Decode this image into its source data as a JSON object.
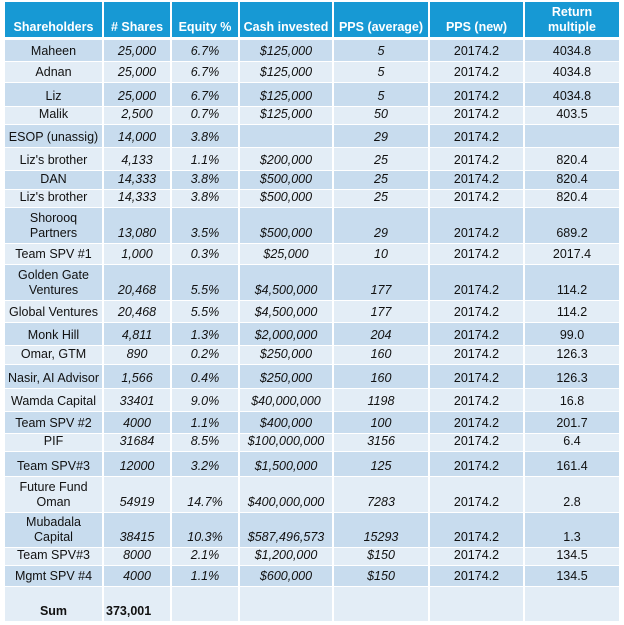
{
  "headers": [
    "Shareholders",
    "# Shares",
    "Equity %",
    "Cash invested",
    "PPS (average)",
    "PPS (new)",
    "Return multiple"
  ],
  "rows": [
    [
      "Maheen",
      "25,000",
      "6.7%",
      "$125,000",
      "5",
      "20174.2",
      "4034.8"
    ],
    [
      "Adnan",
      "25,000",
      "6.7%",
      "$125,000",
      "5",
      "20174.2",
      "4034.8"
    ],
    [
      "Liz",
      "25,000",
      "6.7%",
      "$125,000",
      "5",
      "20174.2",
      "4034.8"
    ],
    [
      "Malik",
      "2,500",
      "0.7%",
      "$125,000",
      "50",
      "20174.2",
      "403.5"
    ],
    [
      "ESOP (unassig)",
      "14,000",
      "3.8%",
      "",
      "29",
      "20174.2",
      ""
    ],
    [
      "Liz's brother",
      "4,133",
      "1.1%",
      "$200,000",
      "25",
      "20174.2",
      "820.4"
    ],
    [
      "DAN",
      "14,333",
      "3.8%",
      "$500,000",
      "25",
      "20174.2",
      "820.4"
    ],
    [
      "Liz's  brother",
      "14,333",
      "3.8%",
      "$500,000",
      "25",
      "20174.2",
      "820.4"
    ],
    [
      "Shorooq Partners",
      "13,080",
      "3.5%",
      "$500,000",
      "29",
      "20174.2",
      "689.2"
    ],
    [
      "Team SPV #1",
      "1,000",
      "0.3%",
      "$25,000",
      "10",
      "20174.2",
      "2017.4"
    ],
    [
      "Golden Gate Ventures",
      "20,468",
      "5.5%",
      "$4,500,000",
      "177",
      "20174.2",
      "114.2"
    ],
    [
      "Global Ventures",
      "20,468",
      "5.5%",
      "$4,500,000",
      "177",
      "20174.2",
      "114.2"
    ],
    [
      "Monk Hill",
      "4,811",
      "1.3%",
      "$2,000,000",
      "204",
      "20174.2",
      "99.0"
    ],
    [
      "Omar, GTM",
      "890",
      "0.2%",
      "$250,000",
      "160",
      "20174.2",
      "126.3"
    ],
    [
      "Nasir, AI Advisor",
      "1,566",
      "0.4%",
      "$250,000",
      "160",
      "20174.2",
      "126.3"
    ],
    [
      "Wamda Capital",
      "33401",
      "9.0%",
      "$40,000,000",
      "1198",
      "20174.2",
      "16.8"
    ],
    [
      "Team SPV #2",
      "4000",
      "1.1%",
      "$400,000",
      "100",
      "20174.2",
      "201.7"
    ],
    [
      "PIF",
      "31684",
      "8.5%",
      "$100,000,000",
      "3156",
      "20174.2",
      "6.4"
    ],
    [
      "Team SPV#3",
      "12000",
      "3.2%",
      "$1,500,000",
      "125",
      "20174.2",
      "161.4"
    ],
    [
      "Future Fund Oman",
      "54919",
      "14.7%",
      "$400,000,000",
      "7283",
      "20174.2",
      "2.8"
    ],
    [
      "Mubadala Capital",
      "38415",
      "10.3%",
      "$587,496,573",
      "15293",
      "20174.2",
      "1.3"
    ],
    [
      "Team SPV#3",
      "8000",
      "2.1%",
      "$1,200,000",
      "$150",
      "20174.2",
      "134.5"
    ],
    [
      "Mgmt SPV #4",
      "4000",
      "1.1%",
      "$600,000",
      "$150",
      "20174.2",
      "134.5"
    ]
  ],
  "sum": {
    "label": "Sum",
    "shares": "373,001"
  }
}
